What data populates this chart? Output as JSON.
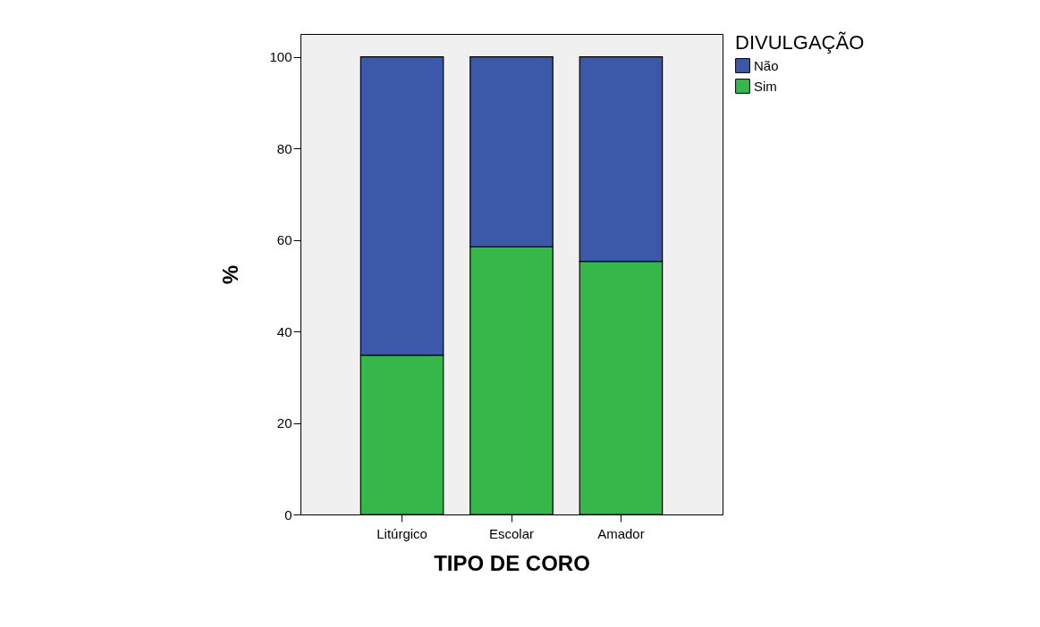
{
  "chart_data": {
    "type": "bar",
    "stacked": true,
    "xlabel": "TIPO DE CORO",
    "ylabel": "%",
    "legend_title": "DIVULGAÇÃO",
    "legend": "right",
    "grid": false,
    "categories": [
      "Litúrgico",
      "Escolar",
      "Amador"
    ],
    "series": [
      {
        "name": "Sim",
        "color": "#36b74a",
        "values": [
          34.8,
          58.5,
          55.3
        ]
      },
      {
        "name": "Não",
        "color": "#3c58a8",
        "values": [
          65.2,
          41.5,
          44.7
        ]
      }
    ],
    "ylim": [
      0,
      105
    ],
    "yticks": [
      0,
      20,
      40,
      60,
      80,
      100
    ]
  }
}
